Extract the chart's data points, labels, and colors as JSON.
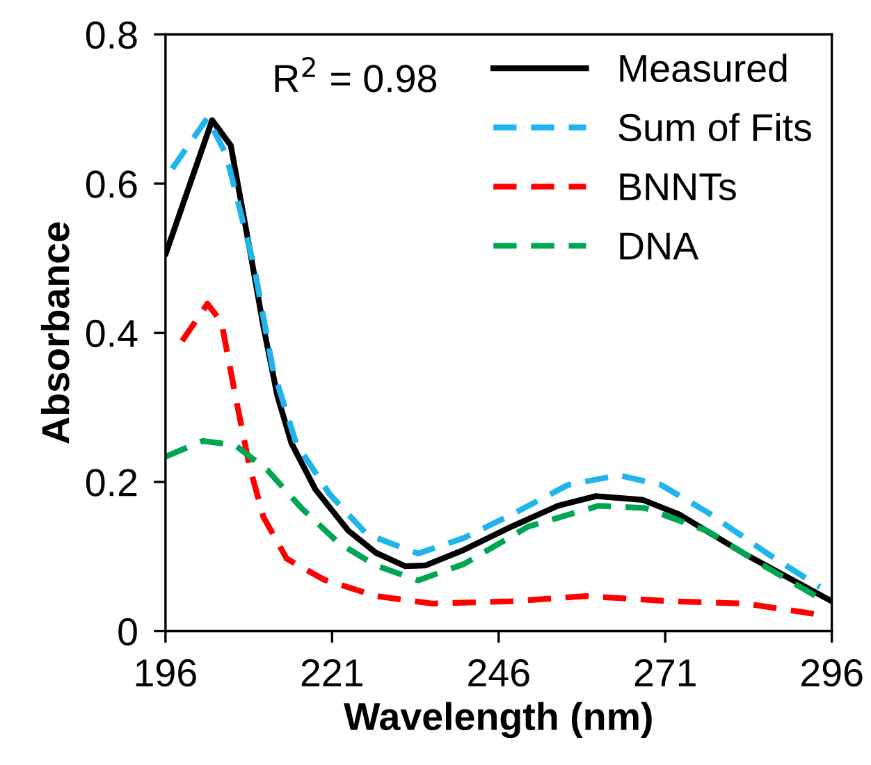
{
  "chart_data": {
    "type": "line",
    "xlabel": "Wavelength (nm)",
    "ylabel": "Absorbance",
    "xlim": [
      196,
      296
    ],
    "xticks": [
      196,
      221,
      246,
      271,
      296
    ],
    "ylim": [
      0,
      0.8
    ],
    "yticks": [
      0,
      0.2,
      0.4,
      0.6,
      0.8
    ],
    "grid": false,
    "legend": "top right",
    "marker": "none",
    "annotations": [
      "R$^{2}$ = 0.98"
    ],
    "series": [
      {
        "name": "Measured",
        "color": "#000000",
        "line_style": "solid",
        "x": [
          196,
          203,
          205.8,
          208.6,
          210.7,
          212.8,
          214.9,
          218.5,
          223.4,
          227.6,
          232,
          235,
          240.8,
          247.9,
          254.9,
          260.6,
          267.6,
          273.2,
          283,
          296
        ],
        "values": [
          0.505,
          0.685,
          0.651,
          0.514,
          0.408,
          0.315,
          0.252,
          0.19,
          0.135,
          0.105,
          0.087,
          0.088,
          0.109,
          0.14,
          0.168,
          0.181,
          0.176,
          0.156,
          0.103,
          0.04
        ]
      },
      {
        "name": "Sum of Fits",
        "color": "#1fb4ec",
        "line_style": "dashed",
        "x": [
          197,
          202.3,
          205.1,
          209.3,
          212.1,
          215.6,
          220.6,
          226.2,
          233.9,
          240.8,
          247.9,
          256.4,
          264,
          270.4,
          277.4,
          286.5,
          294.2
        ],
        "values": [
          0.62,
          0.688,
          0.639,
          0.489,
          0.352,
          0.252,
          0.184,
          0.13,
          0.104,
          0.125,
          0.156,
          0.196,
          0.209,
          0.196,
          0.159,
          0.103,
          0.059
        ]
      },
      {
        "name": "BNNTs",
        "color": "#ff0000",
        "line_style": "dashed",
        "x": [
          198.5,
          202.3,
          204.4,
          206.5,
          208.6,
          210.7,
          214.2,
          219.8,
          227.6,
          236,
          247.9,
          259.2,
          271.8,
          283,
          293.5
        ],
        "values": [
          0.389,
          0.439,
          0.414,
          0.315,
          0.221,
          0.153,
          0.097,
          0.069,
          0.047,
          0.037,
          0.04,
          0.047,
          0.04,
          0.037,
          0.023
        ]
      },
      {
        "name": "DNA",
        "color": "#00a651",
        "line_style": "dashed",
        "x": [
          196,
          201.6,
          206.5,
          211.4,
          216.4,
          222,
          227.6,
          233.9,
          240.8,
          250.4,
          261,
          268,
          277.4,
          286.5,
          294.2
        ],
        "values": [
          0.234,
          0.255,
          0.249,
          0.215,
          0.165,
          0.118,
          0.088,
          0.068,
          0.09,
          0.14,
          0.168,
          0.165,
          0.134,
          0.084,
          0.044
        ]
      }
    ]
  }
}
